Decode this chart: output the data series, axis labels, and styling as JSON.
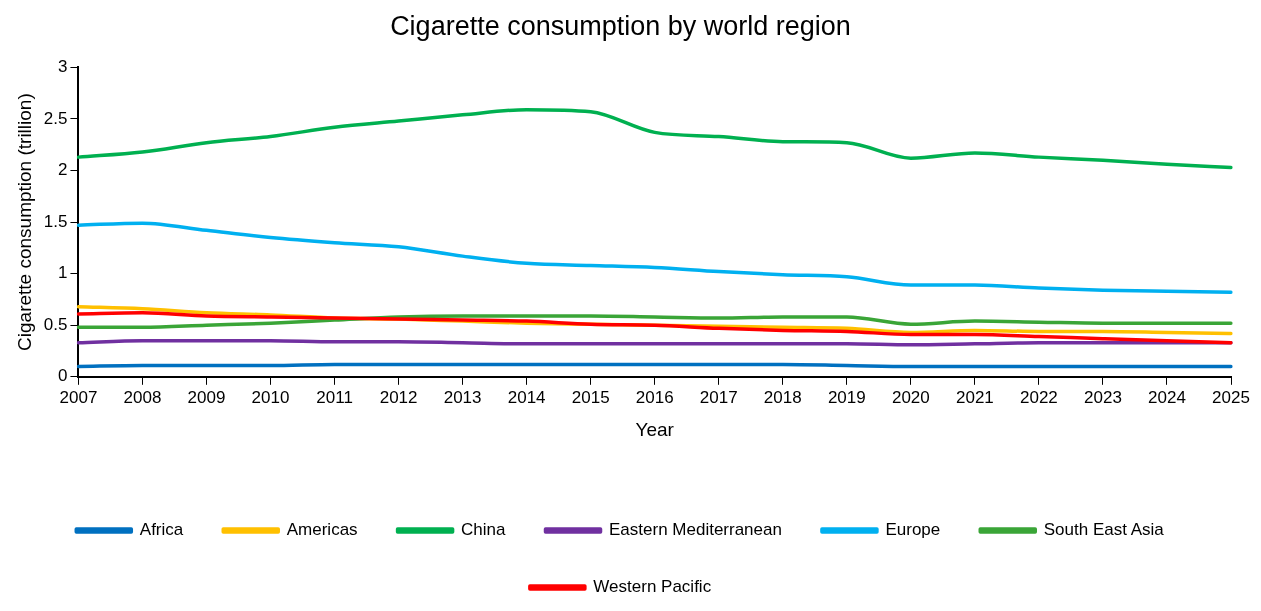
{
  "chart_data": {
    "type": "line",
    "title": "Cigarette consumption by world region",
    "xlabel": "Year",
    "ylabel": "Cigarette consumption (trillion)",
    "categories": [
      "2007",
      "2008",
      "2009",
      "2010",
      "2011",
      "2012",
      "2013",
      "2014",
      "2015",
      "2016",
      "2017",
      "2018",
      "2019",
      "2020",
      "2021",
      "2022",
      "2023",
      "2024",
      "2025"
    ],
    "ylim": [
      0,
      3
    ],
    "yticks": [
      0,
      0.5,
      1,
      1.5,
      2,
      2.5,
      3
    ],
    "grid": false,
    "legend": "bottom",
    "marker": "none",
    "line_style": "solid",
    "series": [
      {
        "name": "Africa",
        "color": "#0070c0",
        "values": [
          0.1,
          0.11,
          0.11,
          0.11,
          0.12,
          0.12,
          0.12,
          0.12,
          0.12,
          0.12,
          0.12,
          0.12,
          0.11,
          0.1,
          0.1,
          0.1,
          0.1,
          0.1,
          0.1
        ]
      },
      {
        "name": "Americas",
        "color": "#ffc000",
        "values": [
          0.68,
          0.66,
          0.62,
          0.6,
          0.57,
          0.56,
          0.54,
          0.52,
          0.51,
          0.5,
          0.49,
          0.48,
          0.47,
          0.43,
          0.45,
          0.44,
          0.44,
          0.43,
          0.42
        ]
      },
      {
        "name": "China",
        "color": "#00b050",
        "values": [
          2.13,
          2.18,
          2.27,
          2.33,
          2.42,
          2.48,
          2.54,
          2.59,
          2.57,
          2.37,
          2.33,
          2.28,
          2.27,
          2.12,
          2.17,
          2.13,
          2.1,
          2.06,
          2.03
        ]
      },
      {
        "name": "Eastern Mediterranean",
        "color": "#7030a0",
        "values": [
          0.33,
          0.35,
          0.35,
          0.35,
          0.34,
          0.34,
          0.33,
          0.32,
          0.32,
          0.32,
          0.32,
          0.32,
          0.32,
          0.31,
          0.32,
          0.33,
          0.33,
          0.33,
          0.33
        ]
      },
      {
        "name": "Europe",
        "color": "#00b0f0",
        "values": [
          1.47,
          1.49,
          1.42,
          1.35,
          1.3,
          1.26,
          1.17,
          1.1,
          1.08,
          1.06,
          1.02,
          0.99,
          0.97,
          0.89,
          0.89,
          0.86,
          0.84,
          0.83,
          0.82
        ]
      },
      {
        "name": "South East Asia",
        "color": "#3aa537",
        "values": [
          0.48,
          0.48,
          0.5,
          0.52,
          0.55,
          0.58,
          0.59,
          0.59,
          0.59,
          0.58,
          0.57,
          0.58,
          0.58,
          0.51,
          0.54,
          0.53,
          0.52,
          0.52,
          0.52
        ]
      },
      {
        "name": "Western Pacific",
        "color": "#ff0000",
        "values": [
          0.61,
          0.62,
          0.59,
          0.58,
          0.57,
          0.56,
          0.55,
          0.54,
          0.51,
          0.5,
          0.47,
          0.45,
          0.44,
          0.41,
          0.41,
          0.39,
          0.37,
          0.35,
          0.33
        ]
      }
    ]
  }
}
